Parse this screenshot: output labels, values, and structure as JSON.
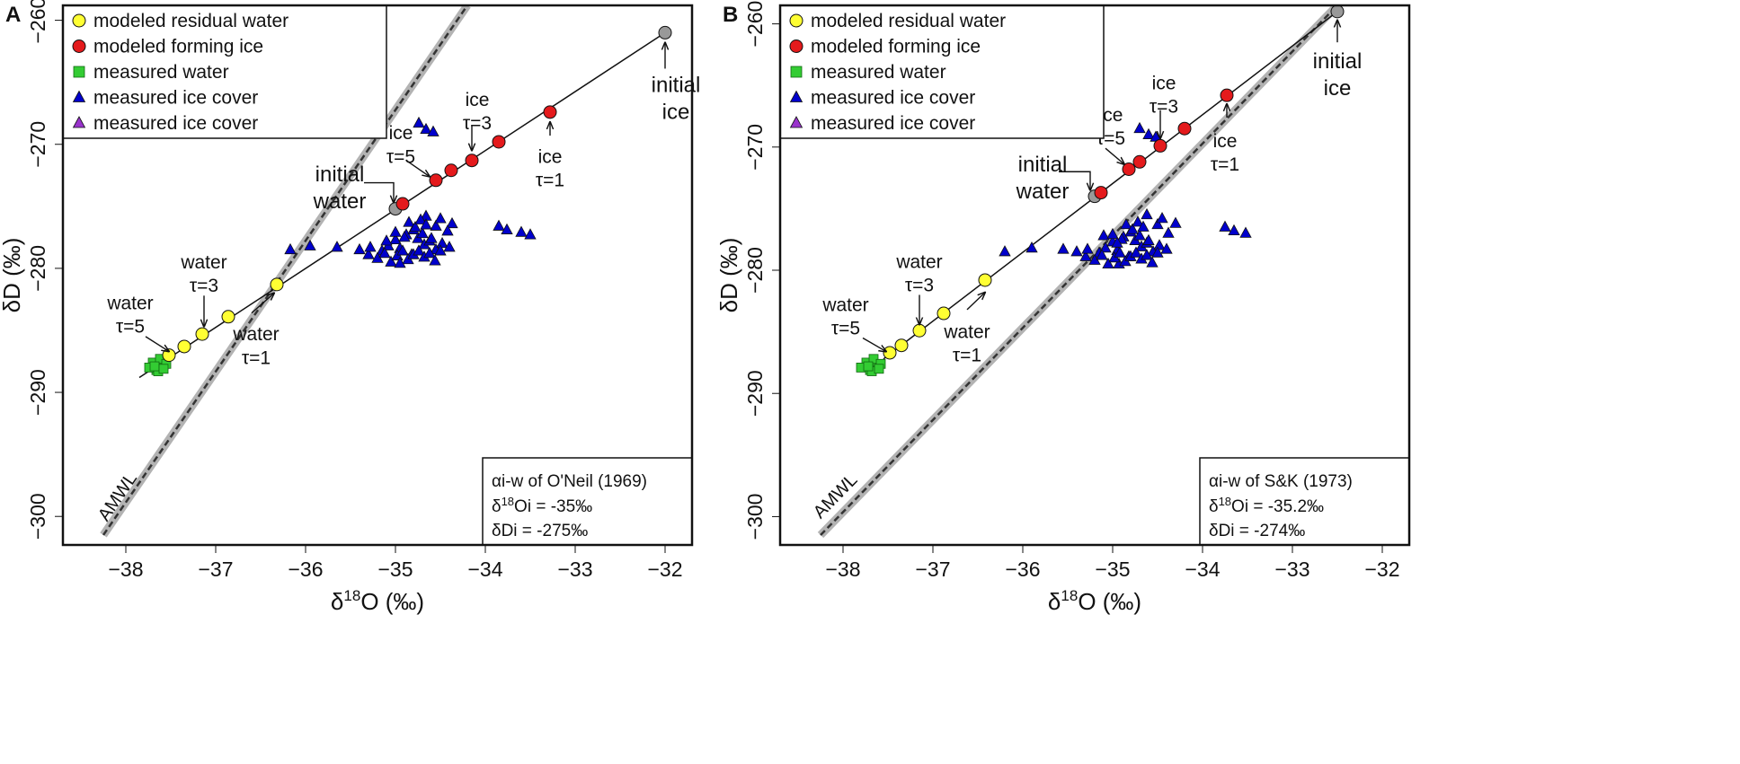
{
  "chart_data": [
    {
      "type": "scatter",
      "panel_label": "A",
      "xlabel_main": "δ",
      "xlabel_sup": "18",
      "xlabel_rest": "O (‰)",
      "ylabel": "δD (‰)",
      "xlim": [
        -38.7,
        -31.7
      ],
      "ylim": [
        -302.3,
        -258.8
      ],
      "xticks": [
        -38,
        -37,
        -36,
        -35,
        -34,
        -33,
        -32
      ],
      "xtick_labels": [
        "−38",
        "−37",
        "−36",
        "−35",
        "−34",
        "−33",
        "−32"
      ],
      "yticks": [
        -260,
        -270,
        -280,
        -290,
        -300
      ],
      "ytick_labels": [
        "−260",
        "−270",
        "−280",
        "−290",
        "−300"
      ],
      "legend": [
        {
          "label": "modeled residual water",
          "marker": "circle",
          "color": "#ffff33"
        },
        {
          "label": "modeled forming ice",
          "marker": "circle",
          "color": "#e41a1c"
        },
        {
          "label": "measured water",
          "marker": "square",
          "color": "#33cc33"
        },
        {
          "label": "measured ice cover",
          "marker": "triangle",
          "color": "#0000cc"
        },
        {
          "label": "measured ice cover",
          "marker": "triangle",
          "color": "#9933cc"
        }
      ],
      "info": {
        "line1_alpha": "α",
        "line1_rest": "i-w of O'Neil (1969)",
        "line2_pre": "δ",
        "line2_sup": "18",
        "line2_rest": "Oi = -35‰",
        "line3": "δDi = -275‰"
      },
      "amwl": {
        "label": "AMWL",
        "x": [
          -38.25,
          -34.2
        ],
        "y": [
          -301.5,
          -258.8
        ]
      },
      "model_line": {
        "x": [
          -37.85,
          -32.0
        ],
        "y": [
          -288.8,
          -261.0
        ]
      },
      "initial_water": {
        "x": -35.0,
        "y": -275.2
      },
      "initial_ice": {
        "x": -32.0,
        "y": -261.0
      },
      "water": {
        "x": [
          -36.32,
          -36.86,
          -37.15,
          -37.35,
          -37.52
        ],
        "y": [
          -281.3,
          -283.9,
          -285.3,
          -286.3,
          -287.0
        ]
      },
      "ice": {
        "x": [
          -33.28,
          -33.85,
          -34.15,
          -34.38,
          -34.55,
          -34.92
        ],
        "y": [
          -267.4,
          -269.8,
          -271.3,
          -272.1,
          -272.9,
          -274.8
        ]
      },
      "measured_water": {
        "x": [
          -37.58,
          -37.66,
          -37.7,
          -37.62,
          -37.55,
          -37.74,
          -37.64,
          -37.68,
          -37.58
        ],
        "y": [
          -287.8,
          -288.2,
          -287.6,
          -287.3,
          -287.7,
          -288.0,
          -288.3,
          -287.9,
          -288.1
        ]
      },
      "measured_ice": {
        "x": [
          -34.74,
          -34.66,
          -34.58,
          -34.66,
          -34.55,
          -34.5,
          -34.37,
          -34.42,
          -33.85,
          -33.76,
          -33.6,
          -33.5,
          -36.17,
          -35.95,
          -35.65,
          -35.4,
          -35.3,
          -35.28,
          -35.15,
          -35.08,
          -35.0,
          -34.95,
          -34.88,
          -34.82,
          -34.75,
          -34.68,
          -34.62,
          -34.55,
          -34.48,
          -34.4,
          -35.2,
          -35.12,
          -35.05,
          -34.98,
          -34.92,
          -34.86,
          -34.8,
          -34.74,
          -34.68,
          -34.62,
          -34.56,
          -34.5,
          -35.0,
          -34.9,
          -34.8,
          -34.7,
          -34.6,
          -34.85,
          -34.78,
          -34.72,
          -34.66,
          -35.1,
          -34.95
        ],
        "y": [
          -268.3,
          -268.8,
          -269.0,
          -275.8,
          -276.6,
          -276.0,
          -276.4,
          -277.0,
          -276.6,
          -276.9,
          -277.1,
          -277.3,
          -278.5,
          -278.2,
          -278.3,
          -278.5,
          -278.9,
          -278.3,
          -278.6,
          -278.2,
          -277.7,
          -278.4,
          -277.3,
          -278.9,
          -277.6,
          -278.1,
          -277.8,
          -278.5,
          -278.0,
          -278.3,
          -279.2,
          -278.8,
          -279.5,
          -279.0,
          -278.6,
          -279.3,
          -278.9,
          -278.6,
          -279.1,
          -278.8,
          -279.4,
          -278.6,
          -277.1,
          -277.5,
          -276.9,
          -277.2,
          -277.6,
          -276.3,
          -276.7,
          -276.1,
          -276.5,
          -277.8,
          -279.6
        ]
      },
      "annotations": [
        {
          "lines": [
            "initial",
            "water"
          ],
          "x": -35.62,
          "y": -273.0,
          "size": 24
        },
        {
          "lines": [
            "initial",
            "ice"
          ],
          "x": -31.88,
          "y": -265.8,
          "size": 24
        },
        {
          "lines": [
            "ice",
            "τ=1"
          ],
          "x": -33.28,
          "y": -271.5,
          "size": 21
        },
        {
          "lines": [
            "ice",
            "τ=3"
          ],
          "x": -34.09,
          "y": -266.9,
          "size": 21
        },
        {
          "lines": [
            "ice",
            "τ=5"
          ],
          "x": -34.94,
          "y": -269.6,
          "size": 21
        },
        {
          "lines": [
            "water",
            "τ=3"
          ],
          "x": -37.13,
          "y": -280.0,
          "size": 21
        },
        {
          "lines": [
            "water",
            "τ=1"
          ],
          "x": -36.55,
          "y": -285.8,
          "size": 21
        },
        {
          "lines": [
            "water",
            "τ=5"
          ],
          "x": -37.95,
          "y": -283.3,
          "size": 21
        }
      ],
      "arrows": [
        {
          "x1": -35.35,
          "y1": -273.1,
          "x2": -35.02,
          "y2": -273.1,
          "x3": -35.02,
          "y3": -274.7
        },
        {
          "x1": -32.0,
          "y1": -263.9,
          "x2": -32.0,
          "y2": -261.8
        },
        {
          "x1": -33.28,
          "y1": -269.3,
          "x2": -33.28,
          "y2": -268.2
        },
        {
          "x1": -34.15,
          "y1": -268.5,
          "x2": -34.15,
          "y2": -270.5
        },
        {
          "x1": -34.88,
          "y1": -271.3,
          "x2": -34.62,
          "y2": -272.6
        },
        {
          "x1": -37.13,
          "y1": -282.2,
          "x2": -37.13,
          "y2": -284.7
        },
        {
          "x1": -36.6,
          "y1": -283.6,
          "x2": -36.35,
          "y2": -282.0
        },
        {
          "x1": -37.78,
          "y1": -285.5,
          "x2": -37.52,
          "y2": -286.7
        }
      ]
    },
    {
      "type": "scatter",
      "panel_label": "B",
      "xlabel_main": "δ",
      "xlabel_sup": "18",
      "xlabel_rest": "O (‰)",
      "ylabel": "δD (‰)",
      "xlim": [
        -38.7,
        -31.7
      ],
      "ylim": [
        -302.3,
        -258.5
      ],
      "xticks": [
        -38,
        -37,
        -36,
        -35,
        -34,
        -33,
        -32
      ],
      "xtick_labels": [
        "−38",
        "−37",
        "−36",
        "−35",
        "−34",
        "−33",
        "−32"
      ],
      "yticks": [
        -260,
        -270,
        -280,
        -290,
        -300
      ],
      "ytick_labels": [
        "−260",
        "−270",
        "−280",
        "−290",
        "−300"
      ],
      "legend": [
        {
          "label": "modeled residual water",
          "marker": "circle",
          "color": "#ffff33"
        },
        {
          "label": "modeled forming ice",
          "marker": "circle",
          "color": "#e41a1c"
        },
        {
          "label": "measured water",
          "marker": "square",
          "color": "#33cc33"
        },
        {
          "label": "measured ice cover",
          "marker": "triangle",
          "color": "#0000cc"
        },
        {
          "label": "measured ice cover",
          "marker": "triangle",
          "color": "#9933cc"
        }
      ],
      "info": {
        "line1_alpha": "α",
        "line1_rest": "i-w of S&K (1973)",
        "line2_pre": "δ",
        "line2_sup": "18",
        "line2_rest": "Oi = -35.2‰",
        "line3": "δDi = -274‰"
      },
      "amwl": {
        "label": "AMWL",
        "x": [
          -38.25,
          -32.5
        ],
        "y": [
          -301.5,
          -258.5
        ]
      },
      "model_line": {
        "x": [
          -37.55,
          -32.5
        ],
        "y": [
          -287.2,
          -259.0
        ]
      },
      "initial_water": {
        "x": -35.2,
        "y": -274.0
      },
      "initial_ice": {
        "x": -32.5,
        "y": -259.0
      },
      "water": {
        "x": [
          -36.42,
          -36.88,
          -37.15,
          -37.35,
          -37.48
        ],
        "y": [
          -280.8,
          -283.5,
          -284.9,
          -286.1,
          -286.7
        ]
      },
      "ice": {
        "x": [
          -33.73,
          -34.2,
          -34.47,
          -34.7,
          -34.82,
          -35.13
        ],
        "y": [
          -265.8,
          -268.5,
          -269.9,
          -271.2,
          -271.8,
          -273.7
        ]
      },
      "measured_water": {
        "x": [
          -37.62,
          -37.7,
          -37.74,
          -37.66,
          -37.58,
          -37.8,
          -37.68,
          -37.72,
          -37.6
        ],
        "y": [
          -287.7,
          -288.1,
          -287.5,
          -287.2,
          -287.6,
          -287.9,
          -288.2,
          -287.8,
          -288.0
        ]
      },
      "measured_ice": {
        "x": [
          -34.7,
          -34.6,
          -34.52,
          -34.62,
          -34.5,
          -34.45,
          -34.3,
          -34.38,
          -33.75,
          -33.65,
          -33.52,
          -35.1,
          -34.93,
          -36.2,
          -35.9,
          -35.55,
          -35.4,
          -35.3,
          -35.28,
          -35.15,
          -35.08,
          -35.0,
          -34.95,
          -34.88,
          -34.82,
          -34.75,
          -34.68,
          -34.62,
          -34.55,
          -34.48,
          -34.4,
          -35.2,
          -35.12,
          -35.05,
          -34.98,
          -34.92,
          -34.86,
          -34.8,
          -34.74,
          -34.68,
          -34.62,
          -34.56,
          -34.5,
          -35.0,
          -34.9,
          -34.8,
          -34.7,
          -34.6,
          -34.85,
          -34.78,
          -34.72,
          -34.66,
          -34.95
        ],
        "y": [
          -268.5,
          -269.0,
          -269.2,
          -275.5,
          -276.3,
          -275.8,
          -276.2,
          -277.0,
          -276.5,
          -276.8,
          -277.0,
          -277.2,
          -279.5,
          -278.5,
          -278.2,
          -278.3,
          -278.5,
          -278.9,
          -278.3,
          -278.6,
          -278.2,
          -277.7,
          -278.4,
          -277.3,
          -278.9,
          -277.6,
          -278.1,
          -277.8,
          -278.5,
          -278.0,
          -278.3,
          -279.2,
          -278.8,
          -279.5,
          -279.0,
          -278.6,
          -279.3,
          -278.9,
          -278.6,
          -279.1,
          -278.8,
          -279.4,
          -278.6,
          -277.1,
          -277.5,
          -276.9,
          -277.2,
          -277.6,
          -276.3,
          -276.7,
          -276.1,
          -276.5,
          -277.8
        ]
      },
      "annotations": [
        {
          "lines": [
            "initial",
            "water"
          ],
          "x": -35.78,
          "y": -272.0,
          "size": 24
        },
        {
          "lines": [
            "initial",
            "ice"
          ],
          "x": -32.5,
          "y": -263.6,
          "size": 24
        },
        {
          "lines": [
            "ice",
            "τ=1"
          ],
          "x": -33.75,
          "y": -270.0,
          "size": 21
        },
        {
          "lines": [
            "ice",
            "τ=3"
          ],
          "x": -34.43,
          "y": -265.3,
          "size": 21
        },
        {
          "lines": [
            "ice",
            "τ=5"
          ],
          "x": -35.02,
          "y": -267.9,
          "size": 21
        },
        {
          "lines": [
            "water",
            "τ=3"
          ],
          "x": -37.15,
          "y": -279.8,
          "size": 21
        },
        {
          "lines": [
            "water",
            "τ=1"
          ],
          "x": -36.62,
          "y": -285.5,
          "size": 21
        },
        {
          "lines": [
            "water",
            "τ=5"
          ],
          "x": -37.97,
          "y": -283.3,
          "size": 21
        }
      ],
      "arrows": [
        {
          "x1": -35.6,
          "y1": -272.0,
          "x2": -35.25,
          "y2": -272.0,
          "x3": -35.25,
          "y3": -273.5
        },
        {
          "x1": -32.5,
          "y1": -261.5,
          "x2": -32.5,
          "y2": -259.7
        },
        {
          "x1": -33.73,
          "y1": -267.6,
          "x2": -33.73,
          "y2": -266.5
        },
        {
          "x1": -34.47,
          "y1": -267.0,
          "x2": -34.47,
          "y2": -269.3
        },
        {
          "x1": -35.08,
          "y1": -270.1,
          "x2": -34.87,
          "y2": -271.4
        },
        {
          "x1": -37.15,
          "y1": -282.0,
          "x2": -37.15,
          "y2": -284.4
        },
        {
          "x1": -36.62,
          "y1": -283.2,
          "x2": -36.42,
          "y2": -281.8
        },
        {
          "x1": -37.78,
          "y1": -285.5,
          "x2": -37.52,
          "y2": -286.6
        }
      ]
    }
  ]
}
